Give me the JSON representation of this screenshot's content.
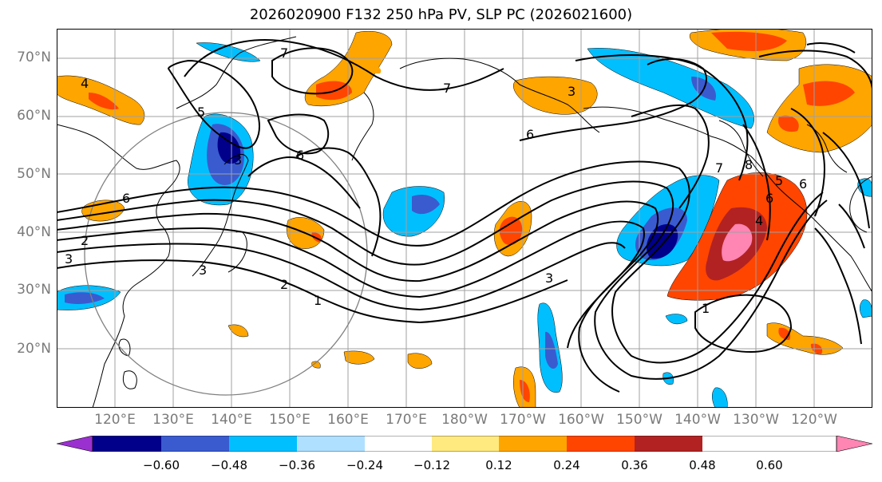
{
  "title": "2026020900 F132 250 hPa PV, SLP PC (2026021600)",
  "lat_labels": [
    "70°N",
    "60°N",
    "50°N",
    "40°N",
    "30°N",
    "20°N"
  ],
  "lon_labels": [
    "120°E",
    "130°E",
    "140°E",
    "150°E",
    "160°E",
    "170°E",
    "180°W",
    "170°W",
    "160°W",
    "150°W",
    "140°W",
    "130°W",
    "120°W"
  ],
  "colorbar": {
    "ticks": [
      "−0.60",
      "−0.48",
      "−0.36",
      "−0.24",
      "−0.12",
      "0.12",
      "0.24",
      "0.36",
      "0.48",
      "0.60"
    ],
    "colors": [
      "#9b30d0",
      "#00008b",
      "#3a5bd0",
      "#00bfff",
      "#b0e0ff",
      "#ffffff",
      "#ffea80",
      "#ffa500",
      "#ff4500",
      "#b22222",
      "#ff85b3"
    ]
  },
  "contour_labels": [
    "7",
    "4",
    "5",
    "3",
    "6",
    "2",
    "3",
    "6",
    "3",
    "2",
    "1",
    "7",
    "3",
    "6",
    "3",
    "7",
    "8",
    "6",
    "5",
    "4",
    "1",
    "6"
  ]
}
